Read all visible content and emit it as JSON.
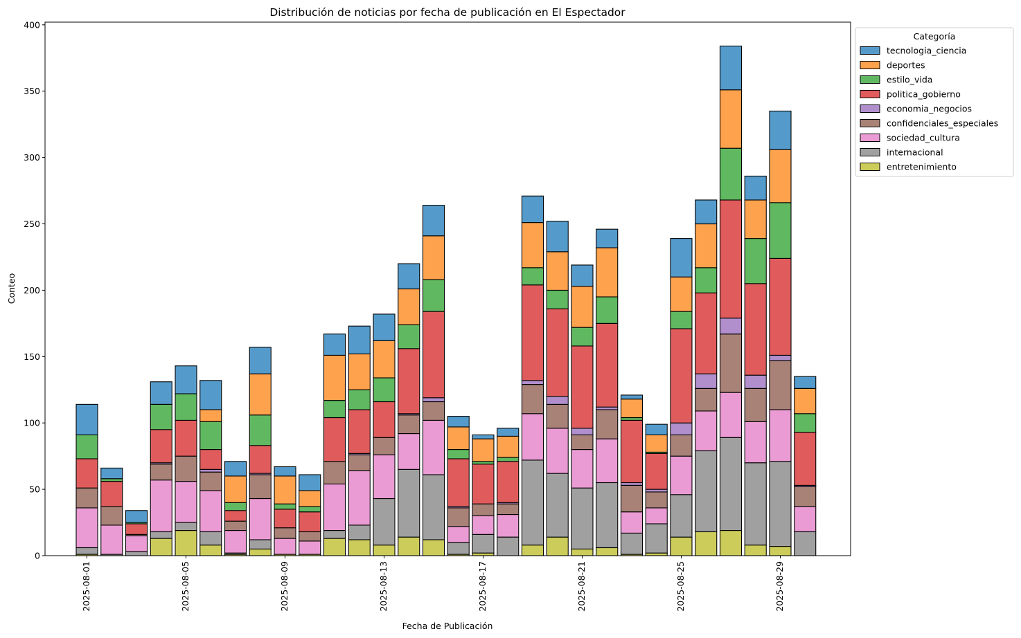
{
  "chart_data": {
    "type": "bar",
    "stacked": true,
    "title": "Distribución de noticias por fecha de publicación en El Espectador",
    "xlabel": "Fecha de Publicación",
    "ylabel": "Conteo",
    "ylim": [
      0,
      402
    ],
    "yticks": [
      0,
      50,
      100,
      150,
      200,
      250,
      300,
      350,
      400
    ],
    "legend_title": "Categoría",
    "legend_position": "top-right outside",
    "grid": false,
    "categories": [
      "2025-08-01",
      "2025-08-02",
      "2025-08-03",
      "2025-08-04",
      "2025-08-05",
      "2025-08-06",
      "2025-08-07",
      "2025-08-08",
      "2025-08-09",
      "2025-08-10",
      "2025-08-11",
      "2025-08-12",
      "2025-08-13",
      "2025-08-14",
      "2025-08-15",
      "2025-08-16",
      "2025-08-17",
      "2025-08-18",
      "2025-08-19",
      "2025-08-20",
      "2025-08-21",
      "2025-08-22",
      "2025-08-23",
      "2025-08-24",
      "2025-08-25",
      "2025-08-26",
      "2025-08-27",
      "2025-08-28",
      "2025-08-29",
      "2025-08-30"
    ],
    "xtick_labels": [
      "2025-08-01",
      "2025-08-05",
      "2025-08-09",
      "2025-08-13",
      "2025-08-17",
      "2025-08-21",
      "2025-08-25",
      "2025-08-29"
    ],
    "series": [
      {
        "name": "entretenimiento",
        "color": "#cccc5a",
        "values": [
          1,
          0,
          0,
          13,
          19,
          8,
          1,
          5,
          1,
          1,
          13,
          12,
          8,
          14,
          12,
          1,
          2,
          0,
          8,
          14,
          5,
          6,
          1,
          2,
          14,
          18,
          19,
          8,
          7,
          0
        ]
      },
      {
        "name": "internacional",
        "color": "#a0a0a0",
        "values": [
          5,
          1,
          3,
          5,
          6,
          10,
          1,
          7,
          0,
          0,
          6,
          11,
          35,
          51,
          49,
          9,
          14,
          14,
          64,
          48,
          46,
          49,
          16,
          22,
          32,
          61,
          70,
          62,
          64,
          18
        ]
      },
      {
        "name": "sociedad_cultura",
        "color": "#ea9bd3",
        "values": [
          30,
          22,
          12,
          39,
          31,
          31,
          17,
          31,
          12,
          10,
          35,
          41,
          33,
          27,
          41,
          12,
          14,
          17,
          35,
          34,
          29,
          33,
          16,
          12,
          29,
          30,
          34,
          31,
          39,
          19
        ]
      },
      {
        "name": "confidenciales_especiales",
        "color": "#a88177",
        "values": [
          15,
          14,
          1,
          12,
          19,
          14,
          7,
          18,
          8,
          7,
          17,
          12,
          13,
          14,
          14,
          14,
          9,
          8,
          22,
          18,
          11,
          22,
          20,
          12,
          16,
          17,
          44,
          25,
          37,
          15
        ]
      },
      {
        "name": "economia_negocios",
        "color": "#b18fcc",
        "values": [
          0,
          0,
          0,
          1,
          0,
          2,
          0,
          1,
          0,
          0,
          0,
          1,
          0,
          1,
          3,
          1,
          0,
          1,
          3,
          6,
          5,
          2,
          2,
          2,
          9,
          11,
          12,
          10,
          4,
          1
        ]
      },
      {
        "name": "politica_gobierno",
        "color": "#e05c5c",
        "values": [
          22,
          19,
          8,
          25,
          27,
          15,
          8,
          21,
          14,
          15,
          33,
          33,
          27,
          49,
          65,
          36,
          30,
          31,
          72,
          66,
          62,
          63,
          47,
          27,
          71,
          61,
          89,
          69,
          73,
          40
        ]
      },
      {
        "name": "estilo_vida",
        "color": "#60b860",
        "values": [
          18,
          2,
          1,
          19,
          20,
          21,
          6,
          23,
          4,
          4,
          13,
          15,
          18,
          18,
          24,
          7,
          2,
          3,
          13,
          14,
          14,
          20,
          2,
          1,
          13,
          19,
          39,
          34,
          42,
          14
        ]
      },
      {
        "name": "deportes",
        "color": "#ffa24d",
        "values": [
          0,
          0,
          0,
          0,
          0,
          9,
          20,
          31,
          21,
          12,
          34,
          27,
          28,
          27,
          33,
          17,
          17,
          16,
          34,
          29,
          31,
          37,
          14,
          13,
          26,
          33,
          44,
          29,
          40,
          19
        ]
      },
      {
        "name": "tecnologia_ciencia",
        "color": "#549bcb",
        "values": [
          23,
          8,
          9,
          17,
          21,
          22,
          11,
          20,
          7,
          12,
          16,
          21,
          20,
          19,
          23,
          8,
          3,
          6,
          20,
          23,
          16,
          14,
          3,
          8,
          29,
          18,
          33,
          18,
          29,
          9
        ]
      }
    ]
  }
}
